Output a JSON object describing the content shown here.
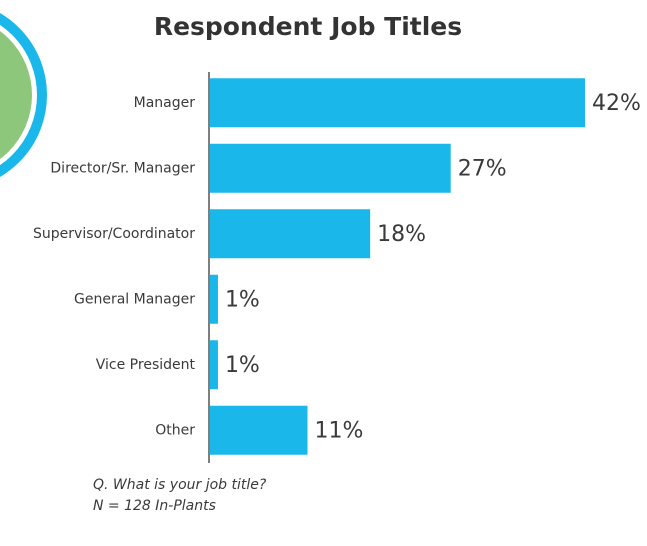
{
  "chart_data": {
    "type": "bar",
    "orientation": "horizontal",
    "title": "Respondent Job Titles",
    "categories": [
      "Manager",
      "Director/Sr. Manager",
      "Supervisor/Coordinator",
      "General Manager",
      "Vice President",
      "Other"
    ],
    "values": [
      42,
      27,
      18,
      1,
      1,
      11
    ],
    "value_labels": [
      "42%",
      "27%",
      "18%",
      "1%",
      "1%",
      "11%"
    ],
    "color": "#1ab7ea",
    "notes": [
      "Q. What is your job title?",
      "N = 128 In-Plants"
    ]
  }
}
